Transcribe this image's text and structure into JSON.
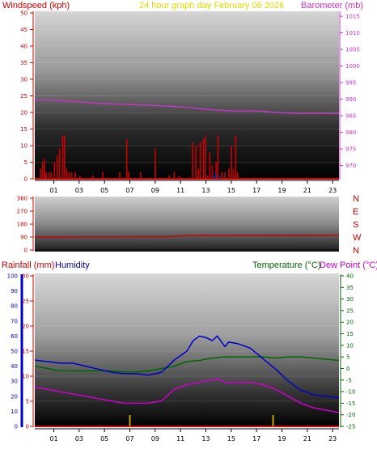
{
  "header": {
    "windspeed_label": "Windspeed (kph)",
    "title": "24 hour graph day   February 06 2026",
    "barometer_label": "Barometer (mb)"
  },
  "rain_label": "Rainfall (mm)",
  "humidity_label": "Humidity",
  "temperature_label": "Temperature (°C)",
  "dewpoint_label": "Dew Point (°C)",
  "colors": {
    "windspeed": "#cc0000",
    "barometer": "#cc33cc",
    "direction": "#cc0000",
    "humidity": "#0000cc",
    "temperature": "#006600",
    "dewpoint": "#cc00cc",
    "rain": "#c8a000",
    "header_text": "#dddd00"
  },
  "chart_data": [
    {
      "type": "bar",
      "name": "windspeed-barometer",
      "xlabel_ticks": [
        "01",
        "03",
        "05",
        "07",
        "09",
        "11",
        "13",
        "15",
        "17",
        "19",
        "21",
        "23"
      ],
      "x_range": [
        0,
        24
      ],
      "left_axis": {
        "label": "Windspeed (kph)",
        "ylim": [
          0,
          50
        ],
        "ticks": [
          0,
          5,
          10,
          15,
          20,
          25,
          30,
          35,
          40,
          45,
          50
        ]
      },
      "right_axis": {
        "label": "Barometer (mb)",
        "ylim": [
          966,
          1016
        ],
        "ticks": [
          970,
          975,
          980,
          985,
          990,
          995,
          1000,
          1005,
          1010,
          1015
        ]
      },
      "wind_bars": [
        [
          0.45,
          3
        ],
        [
          0.6,
          5
        ],
        [
          0.75,
          6
        ],
        [
          0.9,
          2
        ],
        [
          1.1,
          2
        ],
        [
          1.3,
          2
        ],
        [
          1.55,
          5
        ],
        [
          1.75,
          7
        ],
        [
          1.95,
          9
        ],
        [
          2.2,
          13
        ],
        [
          2.35,
          13
        ],
        [
          2.5,
          3
        ],
        [
          2.7,
          2
        ],
        [
          2.9,
          2
        ],
        [
          3.2,
          2
        ],
        [
          3.55,
          1
        ],
        [
          4.6,
          1
        ],
        [
          5.35,
          2
        ],
        [
          6.7,
          2
        ],
        [
          7.25,
          12
        ],
        [
          7.4,
          2
        ],
        [
          8.35,
          2
        ],
        [
          9.5,
          9
        ],
        [
          10.6,
          1
        ],
        [
          11.0,
          2
        ],
        [
          11.4,
          1
        ],
        [
          12.45,
          11
        ],
        [
          12.7,
          10
        ],
        [
          12.9,
          3
        ],
        [
          13.05,
          11
        ],
        [
          13.3,
          12
        ],
        [
          13.45,
          13
        ],
        [
          13.6,
          1
        ],
        [
          13.8,
          8
        ],
        [
          14.0,
          4
        ],
        [
          14.3,
          5
        ],
        [
          14.45,
          13
        ],
        [
          14.75,
          2
        ],
        [
          15.0,
          2
        ],
        [
          15.3,
          3
        ],
        [
          15.5,
          10
        ],
        [
          15.65,
          3
        ],
        [
          15.85,
          13
        ],
        [
          16.0,
          2
        ]
      ],
      "wind_gust_low": [
        [
          14.1,
          1
        ],
        [
          14.25,
          2
        ],
        [
          14.6,
          1
        ]
      ],
      "barometer": [
        [
          0,
          989.8
        ],
        [
          1,
          989.8
        ],
        [
          2,
          989.6
        ],
        [
          3,
          989.3
        ],
        [
          4,
          989.1
        ],
        [
          5,
          988.8
        ],
        [
          6,
          988.6
        ],
        [
          7,
          988.5
        ],
        [
          8,
          988.3
        ],
        [
          9,
          988.2
        ],
        [
          10,
          988.0
        ],
        [
          11,
          987.8
        ],
        [
          12,
          987.5
        ],
        [
          13,
          987.1
        ],
        [
          14,
          986.8
        ],
        [
          15,
          986.6
        ],
        [
          16,
          986.4
        ],
        [
          17,
          986.5
        ],
        [
          18,
          986.4
        ],
        [
          19,
          986.0
        ],
        [
          20,
          985.8
        ],
        [
          21,
          985.7
        ],
        [
          22,
          985.7
        ],
        [
          23,
          985.7
        ],
        [
          24,
          985.7
        ]
      ]
    },
    {
      "type": "line",
      "name": "wind-direction",
      "x_range": [
        0,
        24
      ],
      "ylim": [
        0,
        360
      ],
      "ticks": [
        0,
        90,
        180,
        270,
        360
      ],
      "compass": [
        "N",
        "W",
        "S",
        "E",
        "N"
      ],
      "direction": [
        [
          0,
          90
        ],
        [
          6,
          92
        ],
        [
          11,
          94
        ],
        [
          12,
          100
        ],
        [
          18,
          102
        ],
        [
          24,
          103
        ]
      ]
    },
    {
      "type": "line",
      "name": "rain-humidity-temperature",
      "xlabel_ticks": [
        "01",
        "03",
        "05",
        "07",
        "09",
        "11",
        "13",
        "15",
        "17",
        "19",
        "21",
        "23"
      ],
      "x_range": [
        0,
        24
      ],
      "humidity_axis": {
        "label": "Humidity",
        "ylim": [
          0,
          100
        ],
        "ticks": [
          0,
          10,
          20,
          30,
          40,
          50,
          60,
          70,
          80,
          90,
          100
        ]
      },
      "rain_axis": {
        "label": "Rainfall (mm)",
        "ylim": [
          0,
          30
        ],
        "ticks": [
          0,
          5,
          10,
          15,
          20,
          25,
          30
        ]
      },
      "temp_axis": {
        "label": "Temperature (°C)",
        "ylim": [
          -25,
          40
        ],
        "ticks": [
          -25,
          -20,
          -15,
          -10,
          -5,
          0,
          5,
          10,
          15,
          20,
          25,
          30,
          35,
          40
        ]
      },
      "humidity": [
        [
          0,
          44
        ],
        [
          1,
          43
        ],
        [
          2,
          42
        ],
        [
          3,
          42
        ],
        [
          4,
          40
        ],
        [
          5,
          38
        ],
        [
          6,
          36
        ],
        [
          7,
          35
        ],
        [
          8,
          35
        ],
        [
          9,
          34
        ],
        [
          10,
          36
        ],
        [
          11,
          44
        ],
        [
          12,
          50
        ],
        [
          12.5,
          57
        ],
        [
          13,
          60
        ],
        [
          13.5,
          59
        ],
        [
          14,
          57
        ],
        [
          14.4,
          60
        ],
        [
          15,
          53
        ],
        [
          15.3,
          56
        ],
        [
          16,
          55
        ],
        [
          17,
          52
        ],
        [
          18,
          45
        ],
        [
          19,
          38
        ],
        [
          20,
          30
        ],
        [
          21,
          24
        ],
        [
          22,
          21
        ],
        [
          23,
          20
        ],
        [
          24,
          19
        ]
      ],
      "temperature": [
        [
          0,
          1
        ],
        [
          1,
          0
        ],
        [
          2,
          -1
        ],
        [
          3,
          -1
        ],
        [
          4,
          -1
        ],
        [
          5,
          -1
        ],
        [
          6,
          -1
        ],
        [
          7,
          -1.5
        ],
        [
          8,
          -1.5
        ],
        [
          9,
          -1
        ],
        [
          10,
          0
        ],
        [
          11,
          1
        ],
        [
          12,
          3
        ],
        [
          13,
          3.5
        ],
        [
          14,
          4.5
        ],
        [
          15,
          5
        ],
        [
          16,
          5
        ],
        [
          17,
          5
        ],
        [
          18,
          5
        ],
        [
          19,
          4.5
        ],
        [
          20,
          5
        ],
        [
          21,
          5
        ],
        [
          22,
          4.5
        ],
        [
          23,
          4
        ],
        [
          24,
          3.5
        ]
      ],
      "dewpoint": [
        [
          0,
          -8
        ],
        [
          1,
          -9
        ],
        [
          2,
          -10
        ],
        [
          3,
          -11
        ],
        [
          4,
          -12
        ],
        [
          5,
          -13
        ],
        [
          6,
          -14
        ],
        [
          7,
          -15
        ],
        [
          8,
          -15
        ],
        [
          9,
          -15
        ],
        [
          10,
          -14
        ],
        [
          11,
          -9
        ],
        [
          12,
          -7
        ],
        [
          13,
          -6
        ],
        [
          14,
          -5
        ],
        [
          14.5,
          -4.5
        ],
        [
          15,
          -6
        ],
        [
          16,
          -6
        ],
        [
          17,
          -6
        ],
        [
          18,
          -7
        ],
        [
          19,
          -9
        ],
        [
          20,
          -12
        ],
        [
          21,
          -15
        ],
        [
          22,
          -17
        ],
        [
          23,
          -18
        ],
        [
          24,
          -19
        ]
      ],
      "rain_ticks_at": [
        7.5,
        18.8
      ]
    }
  ]
}
